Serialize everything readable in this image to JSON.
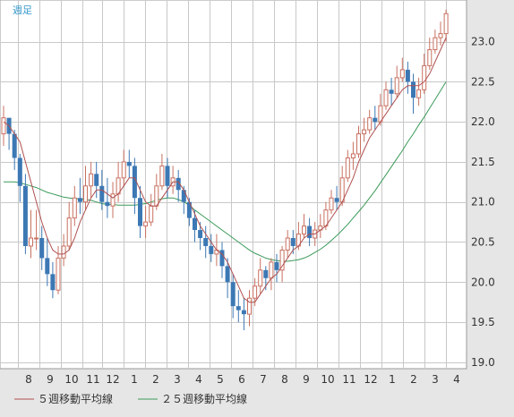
{
  "chart_data": {
    "type": "candlestick",
    "period_label": "週足",
    "x_tick_labels": [
      "8",
      "9",
      "10",
      "11",
      "12",
      "1",
      "2",
      "3",
      "4",
      "5",
      "6",
      "7",
      "8",
      "9",
      "10",
      "11",
      "12",
      "1",
      "2",
      "3",
      "4"
    ],
    "y_ticks": [
      "19.0",
      "19.5",
      "20.0",
      "20.5",
      "21.0",
      "21.5",
      "22.0",
      "22.5",
      "23.0"
    ],
    "ylim": [
      18.92,
      23.52
    ],
    "grid": true,
    "legend_position": "bottom-left",
    "series": [
      {
        "name": "５週移動平均線",
        "color": "#b05050"
      },
      {
        "name": "２５週移動平均線",
        "color": "#3a9a5a"
      }
    ],
    "colors": {
      "up": "#c87060",
      "down": "#3c78b4",
      "grid": "#c8c8c8",
      "plot_bg": "#ffffff",
      "frame_bg": "#e6e6e6"
    },
    "candles": [
      [
        21.85,
        22.05,
        22.2,
        21.7
      ],
      [
        22.05,
        21.85,
        22.0,
        21.65
      ],
      [
        21.85,
        21.55,
        21.9,
        21.4
      ],
      [
        21.55,
        21.2,
        21.6,
        21.0
      ],
      [
        21.2,
        20.45,
        21.35,
        20.35
      ],
      [
        20.45,
        20.55,
        20.9,
        20.3
      ],
      [
        20.55,
        20.55,
        20.9,
        20.4
      ],
      [
        20.55,
        20.3,
        20.7,
        20.15
      ],
      [
        20.3,
        20.1,
        20.55,
        19.95
      ],
      [
        20.1,
        19.9,
        20.25,
        19.8
      ],
      [
        19.9,
        20.3,
        20.45,
        19.85
      ],
      [
        20.3,
        20.45,
        20.6,
        20.2
      ],
      [
        20.45,
        20.8,
        21.0,
        20.4
      ],
      [
        20.8,
        21.05,
        21.2,
        20.7
      ],
      [
        21.05,
        21.0,
        21.3,
        20.85
      ],
      [
        21.0,
        21.2,
        21.45,
        20.9
      ],
      [
        21.2,
        21.35,
        21.5,
        21.05
      ],
      [
        21.35,
        21.2,
        21.5,
        21.05
      ],
      [
        21.2,
        21.0,
        21.4,
        20.9
      ],
      [
        21.0,
        20.95,
        21.3,
        20.8
      ],
      [
        20.95,
        21.1,
        21.25,
        20.8
      ],
      [
        21.1,
        21.3,
        21.5,
        21.0
      ],
      [
        21.3,
        21.5,
        21.65,
        21.2
      ],
      [
        21.5,
        21.45,
        21.65,
        21.3
      ],
      [
        21.45,
        21.05,
        21.55,
        20.85
      ],
      [
        21.05,
        20.7,
        21.2,
        20.55
      ],
      [
        20.7,
        20.75,
        20.95,
        20.55
      ],
      [
        20.75,
        20.95,
        21.1,
        20.7
      ],
      [
        20.95,
        21.2,
        21.35,
        20.9
      ],
      [
        21.2,
        21.45,
        21.6,
        21.15
      ],
      [
        21.45,
        21.2,
        21.55,
        21.05
      ],
      [
        21.2,
        21.3,
        21.45,
        21.1
      ],
      [
        21.3,
        21.15,
        21.4,
        21.0
      ],
      [
        21.15,
        21.0,
        21.2,
        20.85
      ],
      [
        21.0,
        20.8,
        21.05,
        20.7
      ],
      [
        20.8,
        20.65,
        20.9,
        20.5
      ],
      [
        20.65,
        20.55,
        20.75,
        20.4
      ],
      [
        20.55,
        20.45,
        20.7,
        20.3
      ],
      [
        20.45,
        20.35,
        20.6,
        20.25
      ],
      [
        20.35,
        20.4,
        20.6,
        20.2
      ],
      [
        20.4,
        20.2,
        20.5,
        20.05
      ],
      [
        20.2,
        20.0,
        20.3,
        19.8
      ],
      [
        20.0,
        19.7,
        20.1,
        19.55
      ],
      [
        19.7,
        19.65,
        19.9,
        19.5
      ],
      [
        19.65,
        19.6,
        19.8,
        19.4
      ],
      [
        19.6,
        19.8,
        19.9,
        19.45
      ],
      [
        19.8,
        19.95,
        20.05,
        19.7
      ],
      [
        19.95,
        20.15,
        20.3,
        19.85
      ],
      [
        20.15,
        20.05,
        20.2,
        19.9
      ],
      [
        20.05,
        20.25,
        20.3,
        19.9
      ],
      [
        20.25,
        20.15,
        20.35,
        20.0
      ],
      [
        20.15,
        20.4,
        20.45,
        20.0
      ],
      [
        20.4,
        20.55,
        20.65,
        20.3
      ],
      [
        20.55,
        20.45,
        20.65,
        20.35
      ],
      [
        20.45,
        20.6,
        20.75,
        20.4
      ],
      [
        20.6,
        20.7,
        20.85,
        20.55
      ],
      [
        20.7,
        20.55,
        20.8,
        20.45
      ],
      [
        20.55,
        20.65,
        20.75,
        20.45
      ],
      [
        20.65,
        20.7,
        20.85,
        20.55
      ],
      [
        20.7,
        20.9,
        21.0,
        20.65
      ],
      [
        20.9,
        21.05,
        21.15,
        20.85
      ],
      [
        21.05,
        21.0,
        21.2,
        20.9
      ],
      [
        21.0,
        21.3,
        21.45,
        20.95
      ],
      [
        21.3,
        21.55,
        21.65,
        21.25
      ],
      [
        21.55,
        21.6,
        21.75,
        21.4
      ],
      [
        21.6,
        21.85,
        21.95,
        21.55
      ],
      [
        21.85,
        21.9,
        22.05,
        21.75
      ],
      [
        21.9,
        22.05,
        22.15,
        21.85
      ],
      [
        22.05,
        22.0,
        22.2,
        21.9
      ],
      [
        22.0,
        22.2,
        22.35,
        21.95
      ],
      [
        22.2,
        22.4,
        22.5,
        22.15
      ],
      [
        22.4,
        22.35,
        22.55,
        22.2
      ],
      [
        22.35,
        22.55,
        22.7,
        22.3
      ],
      [
        22.55,
        22.65,
        22.8,
        22.5
      ],
      [
        22.65,
        22.5,
        22.75,
        22.35
      ],
      [
        22.5,
        22.3,
        22.6,
        22.1
      ],
      [
        22.3,
        22.4,
        22.55,
        22.2
      ],
      [
        22.4,
        22.7,
        22.85,
        22.35
      ],
      [
        22.7,
        22.9,
        23.05,
        22.65
      ],
      [
        22.9,
        23.05,
        23.15,
        22.85
      ],
      [
        23.05,
        23.1,
        23.25,
        22.95
      ],
      [
        23.1,
        23.35,
        23.4,
        23.0
      ]
    ],
    "ma5": [
      22.0,
      21.95,
      21.85,
      21.75,
      21.5,
      21.25,
      21.0,
      20.75,
      20.55,
      20.4,
      20.35,
      20.35,
      20.4,
      20.55,
      20.75,
      20.9,
      21.05,
      21.15,
      21.15,
      21.1,
      21.05,
      21.1,
      21.2,
      21.3,
      21.3,
      21.15,
      21.0,
      20.95,
      20.95,
      21.05,
      21.15,
      21.25,
      21.25,
      21.15,
      21.0,
      20.85,
      20.7,
      20.6,
      20.5,
      20.4,
      20.35,
      20.25,
      20.1,
      19.95,
      19.8,
      19.75,
      19.75,
      19.85,
      19.95,
      20.05,
      20.1,
      20.2,
      20.3,
      20.4,
      20.45,
      20.55,
      20.6,
      20.6,
      20.65,
      20.7,
      20.8,
      20.9,
      21.0,
      21.15,
      21.3,
      21.5,
      21.65,
      21.8,
      21.9,
      22.0,
      22.1,
      22.2,
      22.3,
      22.4,
      22.45,
      22.45,
      22.45,
      22.5,
      22.6,
      22.75,
      22.9,
      23.05
    ],
    "ma25": [
      21.25,
      21.25,
      21.25,
      21.24,
      21.22,
      21.2,
      21.18,
      21.15,
      21.12,
      21.1,
      21.08,
      21.06,
      21.05,
      21.04,
      21.04,
      21.03,
      21.02,
      21.0,
      20.98,
      20.97,
      20.97,
      20.96,
      20.96,
      20.96,
      20.96,
      20.97,
      20.98,
      21.0,
      21.02,
      21.04,
      21.05,
      21.05,
      21.03,
      21.0,
      20.96,
      20.9,
      20.85,
      20.8,
      20.75,
      20.7,
      20.65,
      20.6,
      20.55,
      20.5,
      20.45,
      20.4,
      20.36,
      20.33,
      20.3,
      20.28,
      20.27,
      20.26,
      20.26,
      20.27,
      20.28,
      20.3,
      20.33,
      20.37,
      20.41,
      20.46,
      20.52,
      20.58,
      20.65,
      20.72,
      20.8,
      20.88,
      20.96,
      21.05,
      21.14,
      21.24,
      21.34,
      21.44,
      21.54,
      21.64,
      21.75,
      21.85,
      21.96,
      22.06,
      22.17,
      22.28,
      22.39,
      22.5
    ]
  }
}
